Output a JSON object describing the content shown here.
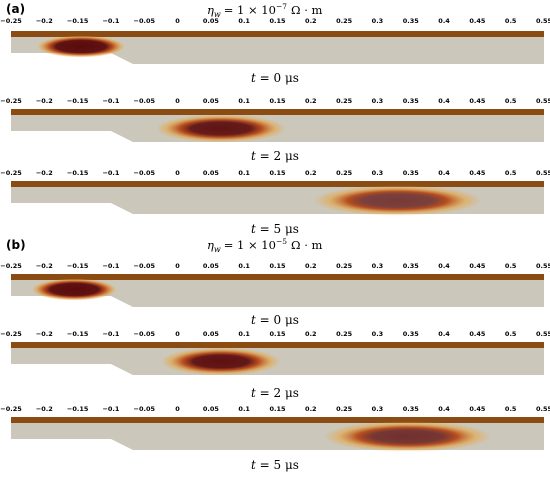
{
  "panels": [
    {
      "label": "(a)",
      "equation": {
        "symbol": "η",
        "subscript": "w",
        "relation": "= 1 × 10",
        "exponent": "−7",
        "units": "Ω · m"
      },
      "frames": [
        {
          "time": "t = 0 μs",
          "blob": {
            "x": -0.145,
            "width": 0.06,
            "peak": 1.0,
            "spread": 0.1
          }
        },
        {
          "time": "t = 2 μs",
          "blob": {
            "x": 0.065,
            "width": 0.065,
            "peak": 0.95,
            "spread": 0.55
          }
        },
        {
          "time": "t = 5 μs",
          "blob": {
            "x": 0.33,
            "width": 0.075,
            "peak": 0.75,
            "spread": 0.75
          }
        }
      ]
    },
    {
      "label": "(b)",
      "equation": {
        "symbol": "η",
        "subscript": "w",
        "relation": "= 1 × 10",
        "exponent": "−5",
        "units": "Ω · m"
      },
      "frames": [
        {
          "time": "t = 0 μs",
          "blob": {
            "x": -0.155,
            "width": 0.058,
            "peak": 1.0,
            "spread": 0.1
          }
        },
        {
          "time": "t = 2 μs",
          "blob": {
            "x": 0.065,
            "width": 0.06,
            "peak": 0.97,
            "spread": 0.55
          }
        },
        {
          "time": "t = 5 μs",
          "blob": {
            "x": 0.345,
            "width": 0.075,
            "peak": 0.8,
            "spread": 0.75
          }
        }
      ]
    }
  ],
  "axis": {
    "ticks": [
      "−0.25",
      "−0.2",
      "−0.15",
      "−0.1",
      "−0.05",
      "0",
      "0.05",
      "0.1",
      "0.15",
      "0.2",
      "0.25",
      "0.3",
      "0.35",
      "0.4",
      "0.45",
      "0.5",
      "0.55"
    ],
    "values": [
      -0.25,
      -0.2,
      -0.15,
      -0.1,
      -0.05,
      0,
      0.05,
      0.1,
      0.15,
      0.2,
      0.25,
      0.3,
      0.35,
      0.4,
      0.45,
      0.5,
      0.55
    ],
    "range": [
      -0.25,
      0.55
    ],
    "nozzle_end": -0.1
  },
  "colors": {
    "domain": "#cbc7bb",
    "wall": "#8b4c14",
    "blob_core": "#5a0a0a",
    "blob_mid": "#b5420f",
    "blob_outer": "#e8a33a",
    "text": "#000000"
  }
}
